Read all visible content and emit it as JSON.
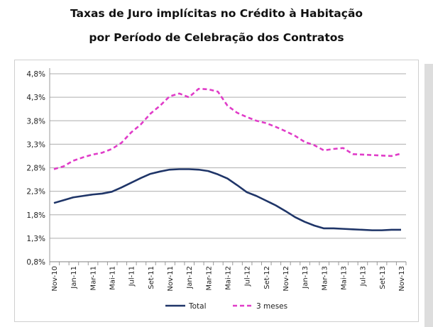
{
  "title_line1": "Taxas de Juro implícitas no Crédito à Habitação",
  "title_line2": "por Período de Celebração dos Contratos",
  "chart_data": {
    "type": "line",
    "title": "Taxas de Juro implícitas no Crédito à Habitação por Período de Celebração dos Contratos",
    "xlabel": "",
    "ylabel": "",
    "ylim": [
      0.8,
      4.8
    ],
    "yticks": [
      "0,8%",
      "1,3%",
      "1,8%",
      "2,3%",
      "2,8%",
      "3,3%",
      "3,8%",
      "4,3%",
      "4,8%"
    ],
    "x": [
      "Nov-10",
      "Dec-10",
      "Jan-11",
      "Feb-11",
      "Mar-11",
      "Apr-11",
      "Mai-11",
      "Jun-11",
      "Jul-11",
      "Aug-11",
      "Set-11",
      "Oct-11",
      "Nov-11",
      "Dec-11",
      "Jan-12",
      "Feb-12",
      "Mar-12",
      "Apr-12",
      "Mai-12",
      "Jun-12",
      "Jul-12",
      "Aug-12",
      "Set-12",
      "Oct-12",
      "Nov-12",
      "Dec-12",
      "Jan-13",
      "Feb-13",
      "Mar-13",
      "Apr-13",
      "Mai-13",
      "Jun-13",
      "Jul-13",
      "Aug-13",
      "Set-13",
      "Oct-13",
      "Nov-13"
    ],
    "xtick_labels": [
      "Nov-10",
      "Jan-11",
      "Mar-11",
      "Mai-11",
      "Jul-11",
      "Set-11",
      "Nov-11",
      "Jan-12",
      "Mar-12",
      "Mai-12",
      "Jul-12",
      "Set-12",
      "Nov-12",
      "Jan-13",
      "Mar-13",
      "Mai-13",
      "Jul-13",
      "Set-13",
      "Nov-13"
    ],
    "grid": true,
    "legend_position": "bottom",
    "series": [
      {
        "name": "Total",
        "color": "#1f3568",
        "style": "solid",
        "values": [
          2.05,
          2.11,
          2.17,
          2.2,
          2.23,
          2.25,
          2.29,
          2.38,
          2.48,
          2.58,
          2.67,
          2.72,
          2.76,
          2.77,
          2.77,
          2.76,
          2.73,
          2.66,
          2.57,
          2.43,
          2.28,
          2.2,
          2.1,
          2.0,
          1.88,
          1.75,
          1.65,
          1.57,
          1.51,
          1.51,
          1.5,
          1.49,
          1.48,
          1.47,
          1.47,
          1.48,
          1.48
        ]
      },
      {
        "name": "3 meses",
        "color": "#e03cc8",
        "style": "dashed",
        "values": [
          2.77,
          2.83,
          2.95,
          3.02,
          3.08,
          3.12,
          3.2,
          3.33,
          3.55,
          3.72,
          3.95,
          4.12,
          4.32,
          4.38,
          4.3,
          4.48,
          4.47,
          4.42,
          4.12,
          3.97,
          3.88,
          3.8,
          3.75,
          3.67,
          3.58,
          3.48,
          3.35,
          3.28,
          3.17,
          3.2,
          3.22,
          3.09,
          3.08,
          3.07,
          3.06,
          3.05,
          3.1
        ]
      }
    ]
  }
}
